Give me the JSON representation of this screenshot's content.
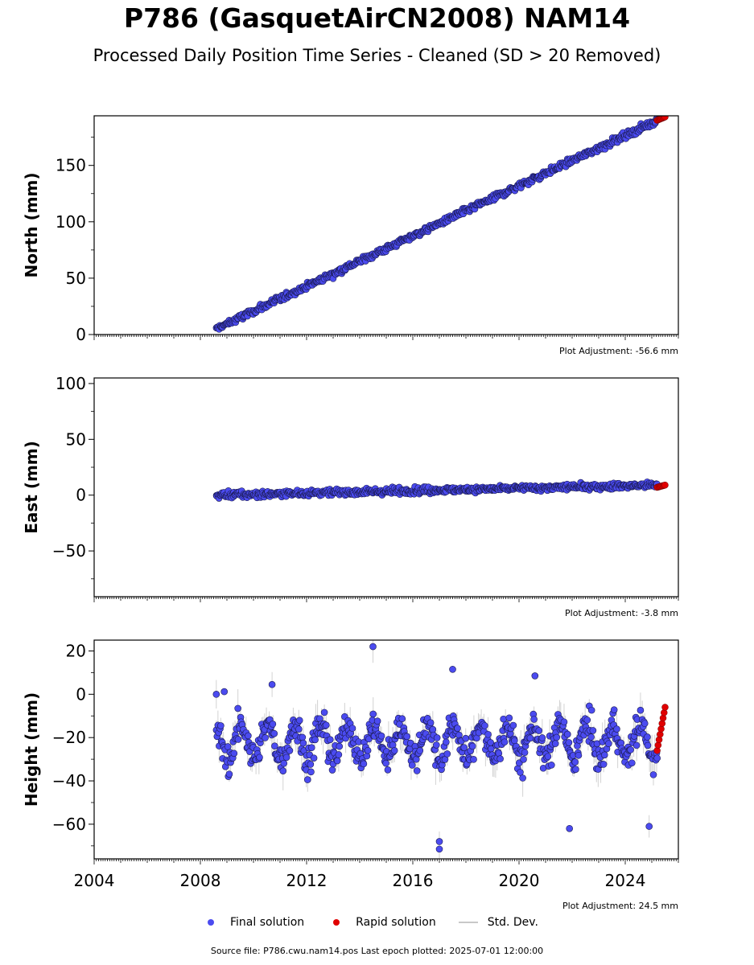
{
  "title": "P786 (GasquetAirCN2008) NAM14",
  "subtitle": "Processed Daily Position Time Series - Cleaned (SD > 20 Removed)",
  "footer": "Source file: P786.cwu.nam14.pos  Last epoch plotted: 2025-07-01 12:00:00",
  "legend": [
    {
      "label": "Final solution",
      "color": "#4b4bf0"
    },
    {
      "label": "Rapid solution",
      "color": "#e00000"
    },
    {
      "label": "Std. Dev.",
      "color": "#c8c8c8"
    }
  ],
  "chart_data": [
    {
      "type": "scatter",
      "ylabel": "North (mm)",
      "xlim": [
        2004,
        2026
      ],
      "ylim": [
        0,
        194
      ],
      "yticks": [
        "0",
        "50",
        "100",
        "150"
      ],
      "adjustment": "Plot Adjustment: -56.6 mm",
      "series": [
        {
          "name": "Final solution",
          "x": [
            2008.6,
            2025.2
          ],
          "y": [
            5,
            190
          ],
          "noise_mm": 2.0
        },
        {
          "name": "Rapid solution",
          "x": [
            2025.2,
            2025.5
          ],
          "y": [
            190,
            193
          ]
        }
      ]
    },
    {
      "type": "scatter",
      "ylabel": "East (mm)",
      "xlim": [
        2004,
        2026
      ],
      "ylim": [
        -91,
        105
      ],
      "yticks": [
        "−50",
        "0",
        "50",
        "100"
      ],
      "adjustment": "Plot Adjustment: -3.8 mm",
      "series": [
        {
          "name": "Final solution",
          "x": [
            2008.6,
            2025.2
          ],
          "y": [
            0,
            9
          ],
          "noise_mm": 2.0
        },
        {
          "name": "Rapid solution",
          "x": [
            2025.2,
            2025.5
          ],
          "y": [
            7,
            9
          ]
        }
      ]
    },
    {
      "type": "scatter",
      "ylabel": "Height (mm)",
      "xlim": [
        2004,
        2026
      ],
      "ylim": [
        -76,
        25
      ],
      "yticks": [
        "−60",
        "−40",
        "−20",
        "0",
        "20"
      ],
      "xticks": [
        "2004",
        "2008",
        "2012",
        "2016",
        "2020",
        "2024"
      ],
      "adjustment": "Plot Adjustment: 24.5 mm",
      "series": [
        {
          "name": "Final solution",
          "x": [
            2008.6,
            2025.2
          ],
          "y_mean": -22,
          "seasonal_amplitude_mm": 8,
          "noise_mm": 5,
          "outliers": [
            [
              2014.5,
              22
            ],
            [
              2017.0,
              -68
            ],
            [
              2017.0,
              -71.5
            ],
            [
              2021.9,
              -62
            ],
            [
              2024.9,
              -61
            ],
            [
              2017.5,
              11.5
            ],
            [
              2010.7,
              4.5
            ],
            [
              2008.9,
              1.2
            ],
            [
              2008.6,
              0
            ],
            [
              2020.6,
              8.5
            ]
          ]
        },
        {
          "name": "Rapid solution",
          "x": [
            2025.2,
            2025.5
          ],
          "y": [
            -26,
            -6
          ]
        }
      ]
    }
  ]
}
